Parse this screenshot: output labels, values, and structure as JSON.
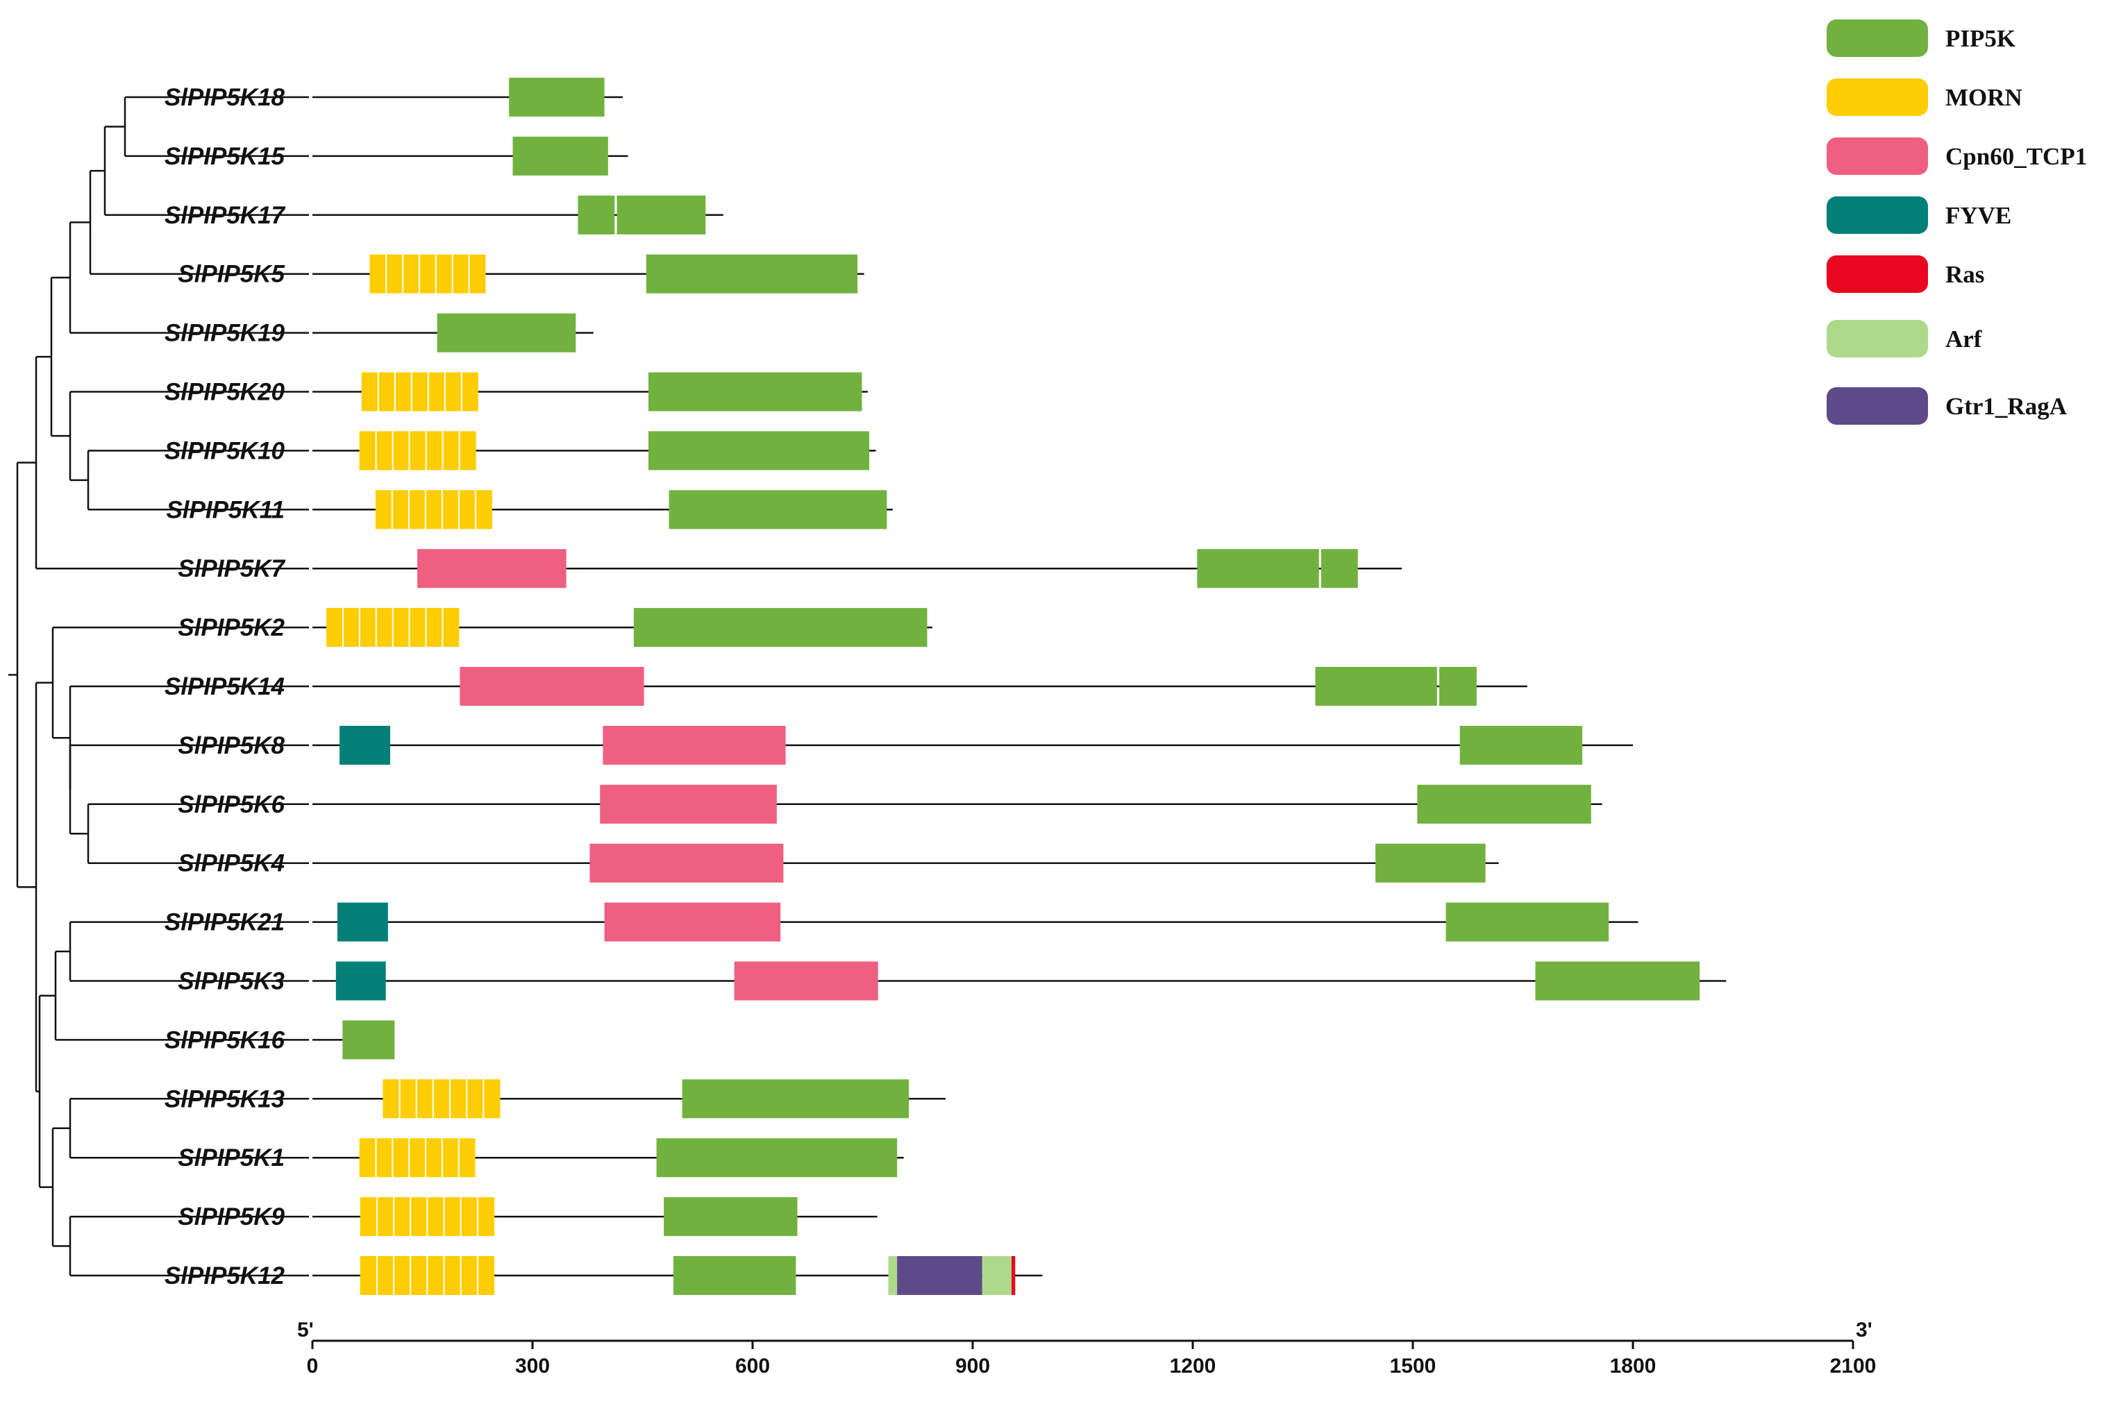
{
  "scale_max": 2100,
  "axis": {
    "ticks": [
      0,
      300,
      600,
      900,
      1200,
      1500,
      1800,
      2100
    ],
    "tick_labels": [
      "0",
      "300",
      "600",
      "900",
      "1200",
      "1500",
      "1800",
      "2100"
    ],
    "start_label": "5'",
    "end_label": "3'"
  },
  "legend": [
    {
      "key": "PIP5K",
      "label": "PIP5K",
      "color": "#71b23f"
    },
    {
      "key": "MORN",
      "label": "MORN",
      "color": "#fecd04"
    },
    {
      "key": "Cpn60",
      "label": "Cpn60_TCP1",
      "color": "#ef5f82"
    },
    {
      "key": "FYVE",
      "label": "FYVE",
      "color": "#028078"
    },
    {
      "key": "Ras",
      "label": "Ras",
      "color": "#e8071f"
    },
    {
      "key": "Arf",
      "label": "Arf",
      "color": "#aed98a"
    },
    {
      "key": "Gtr1",
      "label": "Gtr1_RagA",
      "color": "#5e4a89"
    }
  ],
  "genes": [
    {
      "name": "SlPIP5K18",
      "length": 423,
      "domains": [
        {
          "type": "PIP5K",
          "start": 268,
          "end": 398
        }
      ]
    },
    {
      "name": "SlPIP5K15",
      "length": 430,
      "domains": [
        {
          "type": "PIP5K",
          "start": 273,
          "end": 403
        }
      ]
    },
    {
      "name": "SlPIP5K17",
      "length": 560,
      "domains": [
        {
          "type": "PIP5K",
          "start": 362,
          "end": 412
        },
        {
          "type": "PIP5K",
          "start": 415,
          "end": 536
        }
      ]
    },
    {
      "name": "SlPIP5K5",
      "length": 752,
      "domains": [
        {
          "type": "MORN",
          "start": 78,
          "end": 236,
          "segments": 7
        },
        {
          "type": "PIP5K",
          "start": 455,
          "end": 743
        }
      ]
    },
    {
      "name": "SlPIP5K19",
      "length": 383,
      "domains": [
        {
          "type": "PIP5K",
          "start": 170,
          "end": 359
        }
      ]
    },
    {
      "name": "SlPIP5K20",
      "length": 757,
      "domains": [
        {
          "type": "MORN",
          "start": 67,
          "end": 226,
          "segments": 7
        },
        {
          "type": "PIP5K",
          "start": 458,
          "end": 749
        }
      ]
    },
    {
      "name": "SlPIP5K10",
      "length": 768,
      "domains": [
        {
          "type": "MORN",
          "start": 64,
          "end": 223,
          "segments": 7
        },
        {
          "type": "PIP5K",
          "start": 458,
          "end": 759
        }
      ]
    },
    {
      "name": "SlPIP5K11",
      "length": 791,
      "domains": [
        {
          "type": "MORN",
          "start": 86,
          "end": 245,
          "segments": 7
        },
        {
          "type": "PIP5K",
          "start": 486,
          "end": 783
        }
      ]
    },
    {
      "name": "SlPIP5K7",
      "length": 1485,
      "domains": [
        {
          "type": "Cpn60",
          "start": 143,
          "end": 346
        },
        {
          "type": "PIP5K",
          "start": 1206,
          "end": 1372
        },
        {
          "type": "PIP5K",
          "start": 1375,
          "end": 1425
        }
      ]
    },
    {
      "name": "SlPIP5K2",
      "length": 845,
      "domains": [
        {
          "type": "MORN",
          "start": 19,
          "end": 200,
          "segments": 8
        },
        {
          "type": "PIP5K",
          "start": 438,
          "end": 838
        }
      ]
    },
    {
      "name": "SlPIP5K14",
      "length": 1656,
      "domains": [
        {
          "type": "Cpn60",
          "start": 201,
          "end": 452
        },
        {
          "type": "PIP5K",
          "start": 1367,
          "end": 1533
        },
        {
          "type": "PIP5K",
          "start": 1536,
          "end": 1587
        }
      ]
    },
    {
      "name": "SlPIP5K8",
      "length": 1800,
      "domains": [
        {
          "type": "FYVE",
          "start": 37,
          "end": 106
        },
        {
          "type": "Cpn60",
          "start": 396,
          "end": 645
        },
        {
          "type": "PIP5K",
          "start": 1564,
          "end": 1731
        }
      ]
    },
    {
      "name": "SlPIP5K6",
      "length": 1758,
      "domains": [
        {
          "type": "Cpn60",
          "start": 392,
          "end": 633
        },
        {
          "type": "PIP5K",
          "start": 1506,
          "end": 1743
        }
      ]
    },
    {
      "name": "SlPIP5K4",
      "length": 1617,
      "domains": [
        {
          "type": "Cpn60",
          "start": 378,
          "end": 642
        },
        {
          "type": "PIP5K",
          "start": 1449,
          "end": 1599
        }
      ]
    },
    {
      "name": "SlPIP5K21",
      "length": 1807,
      "domains": [
        {
          "type": "FYVE",
          "start": 34,
          "end": 103
        },
        {
          "type": "Cpn60",
          "start": 398,
          "end": 638
        },
        {
          "type": "PIP5K",
          "start": 1545,
          "end": 1767
        }
      ]
    },
    {
      "name": "SlPIP5K3",
      "length": 1927,
      "domains": [
        {
          "type": "FYVE",
          "start": 32,
          "end": 100
        },
        {
          "type": "Cpn60",
          "start": 575,
          "end": 771
        },
        {
          "type": "PIP5K",
          "start": 1667,
          "end": 1891
        }
      ]
    },
    {
      "name": "SlPIP5K16",
      "length": 112,
      "domains": [
        {
          "type": "PIP5K",
          "start": 41,
          "end": 112
        }
      ]
    },
    {
      "name": "SlPIP5K13",
      "length": 863,
      "domains": [
        {
          "type": "MORN",
          "start": 96,
          "end": 256,
          "segments": 7
        },
        {
          "type": "PIP5K",
          "start": 504,
          "end": 813
        }
      ]
    },
    {
      "name": "SlPIP5K1",
      "length": 806,
      "domains": [
        {
          "type": "MORN",
          "start": 64,
          "end": 222,
          "segments": 7
        },
        {
          "type": "PIP5K",
          "start": 469,
          "end": 797
        }
      ]
    },
    {
      "name": "SlPIP5K9",
      "length": 770,
      "domains": [
        {
          "type": "MORN",
          "start": 65,
          "end": 248,
          "segments": 8
        },
        {
          "type": "PIP5K",
          "start": 479,
          "end": 661
        }
      ]
    },
    {
      "name": "SlPIP5K12",
      "length": 995,
      "domains": [
        {
          "type": "MORN",
          "start": 65,
          "end": 248,
          "segments": 8
        },
        {
          "type": "PIP5K",
          "start": 492,
          "end": 659
        },
        {
          "type": "Arf",
          "start": 785,
          "end": 797
        },
        {
          "type": "Gtr1",
          "start": 797,
          "end": 913
        },
        {
          "type": "Arf",
          "start": 913,
          "end": 953
        },
        {
          "type": "Ras",
          "start": 953,
          "end": 958
        }
      ]
    }
  ]
}
